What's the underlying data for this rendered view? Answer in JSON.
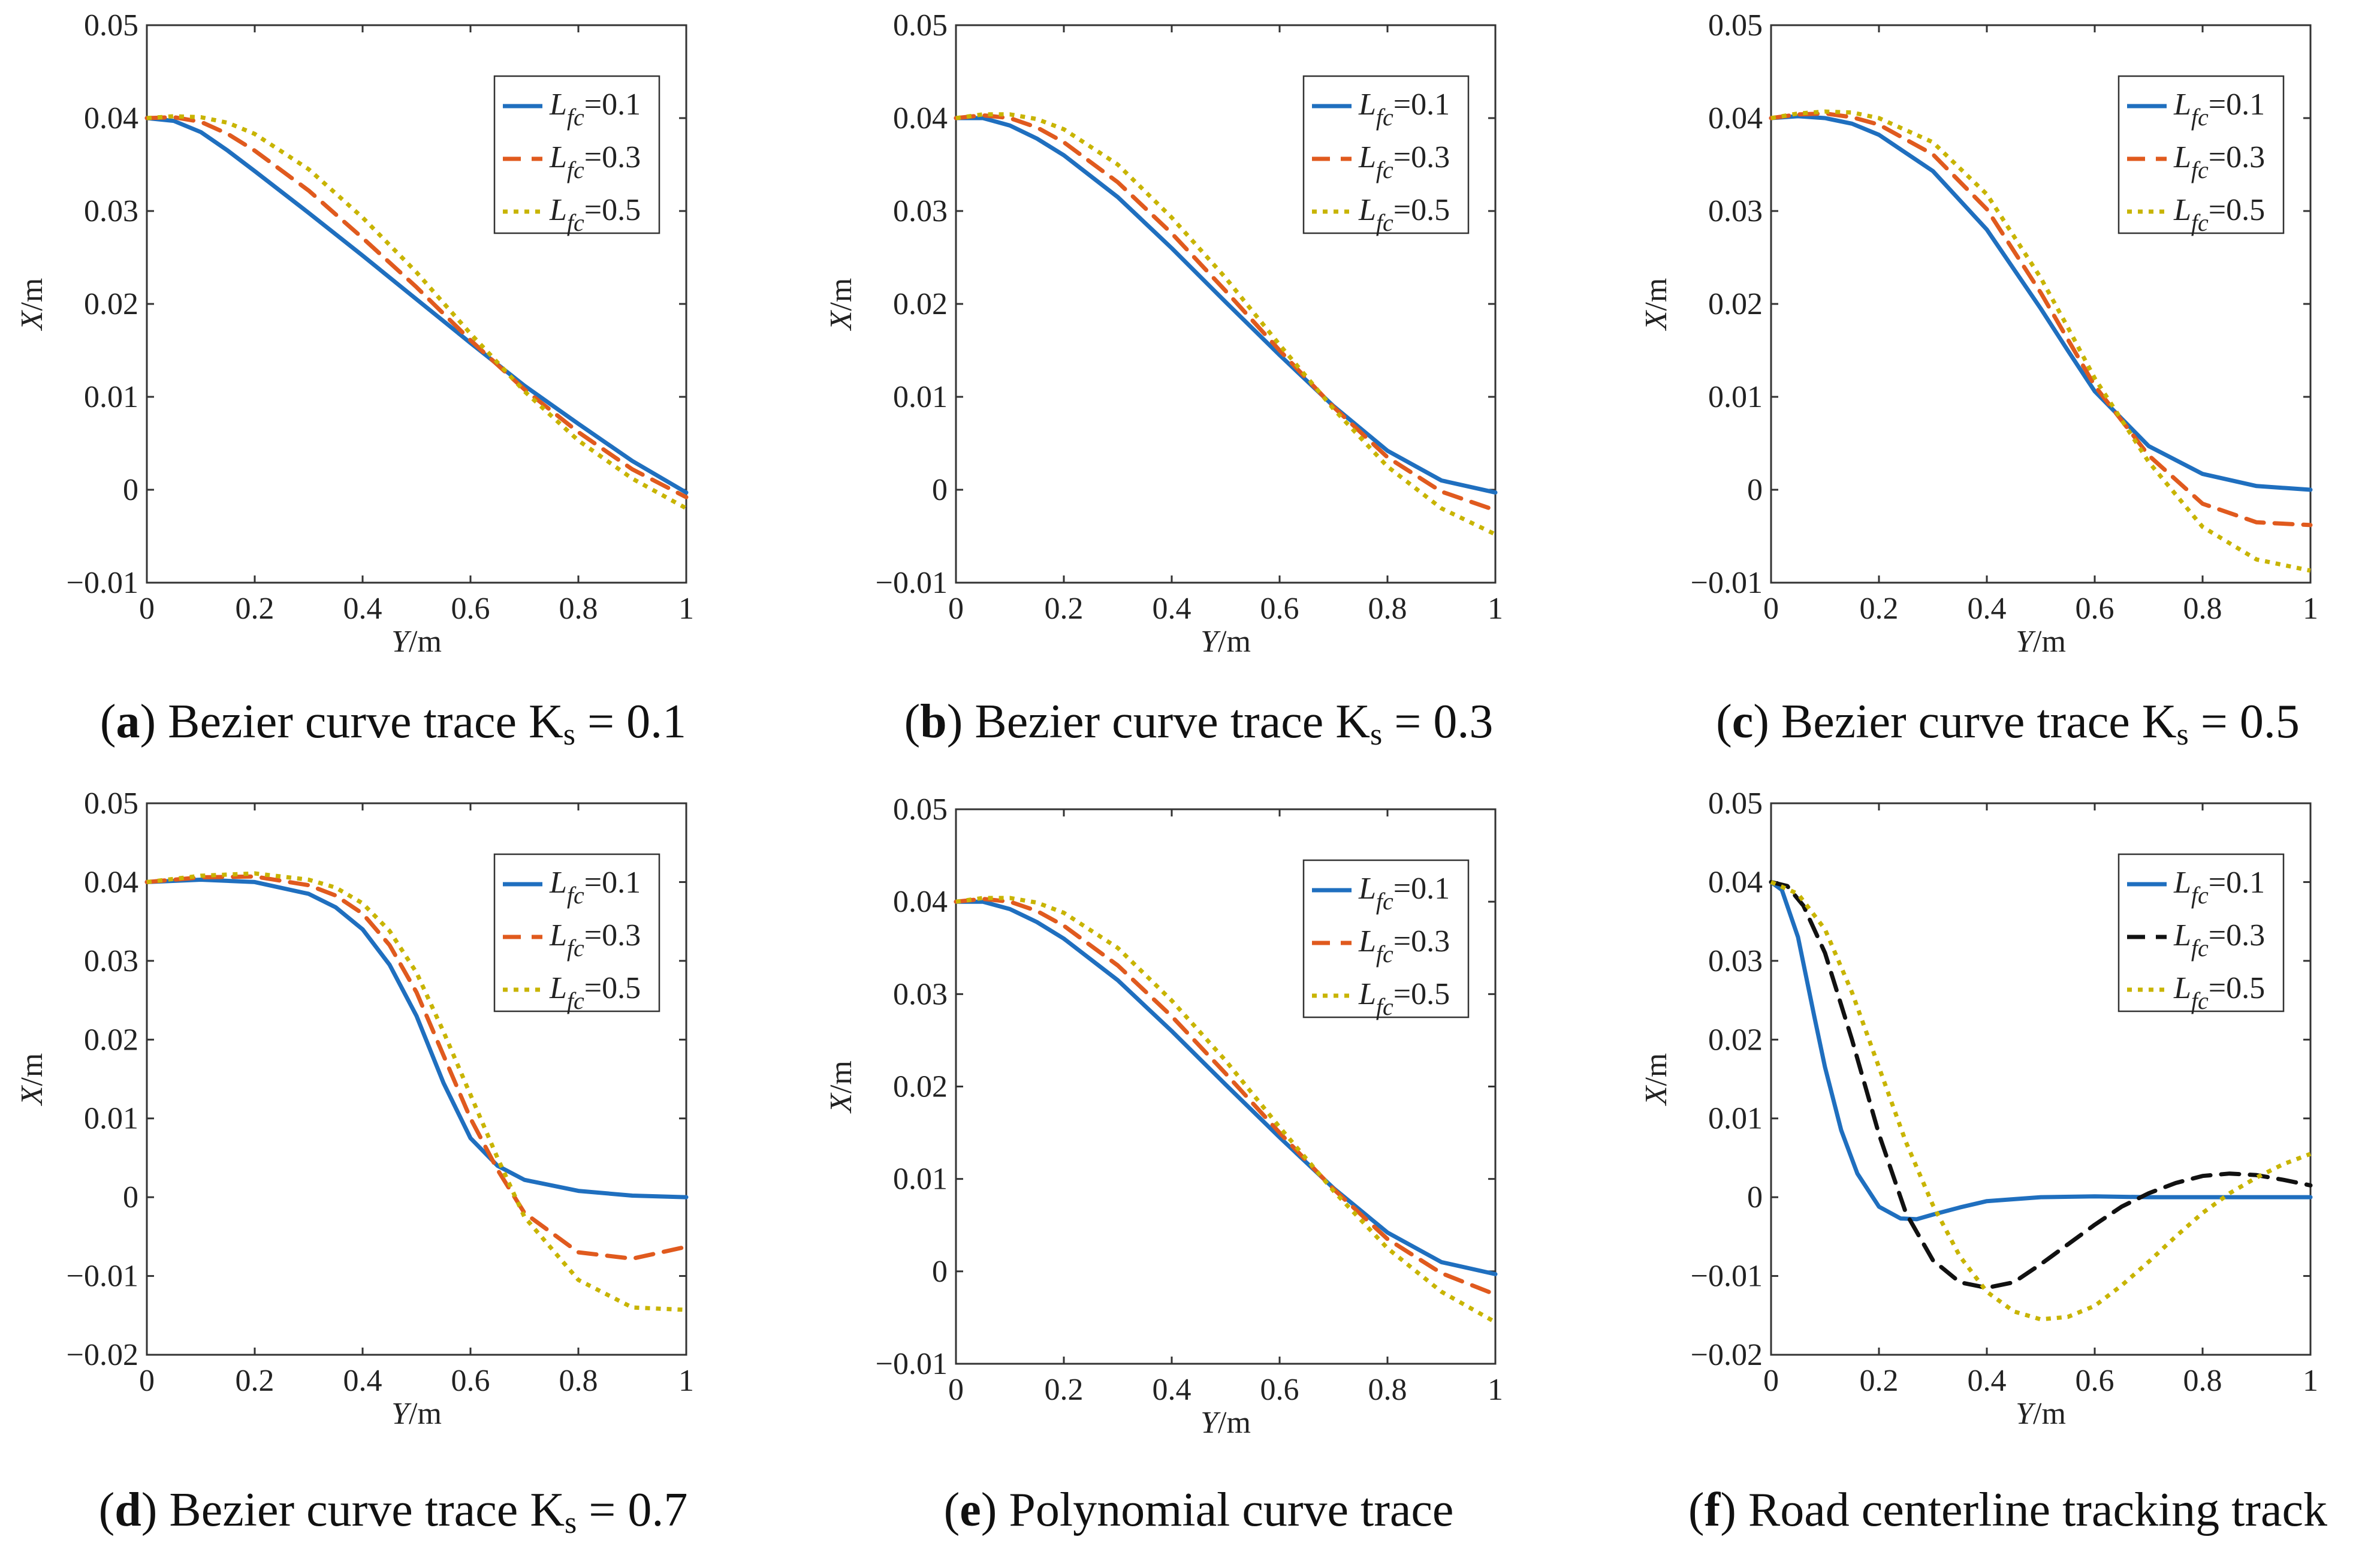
{
  "chart_data": [
    {
      "type": "line",
      "panel_letter": "a",
      "caption_text": " Bezier curve trace K",
      "caption_sub": "s",
      "caption_tail": " = 0.1",
      "xlabel_var": "Y",
      "xlabel_unit": "/m",
      "ylabel_var": "X",
      "ylabel_unit": "/m",
      "xlim": [
        0,
        1
      ],
      "ylim": [
        -0.01,
        0.05
      ],
      "xticks": [
        0,
        0.2,
        0.4,
        0.6,
        0.8,
        1
      ],
      "xtick_labels": [
        "0",
        "0.2",
        "0.4",
        "0.6",
        "0.8",
        "1"
      ],
      "yticks": [
        -0.01,
        0,
        0.01,
        0.02,
        0.03,
        0.04,
        0.05
      ],
      "ytick_labels": [
        "−0.01",
        "0",
        "0.01",
        "0.02",
        "0.03",
        "0.04",
        "0.05"
      ],
      "legend_position": "top-right",
      "series": [
        {
          "name": "L_fc=0.1",
          "label_var": "L",
          "label_sub": "fc",
          "label_val": "=0.1",
          "color": "#1f6fbf",
          "dash": "solid",
          "x": [
            0,
            0.05,
            0.1,
            0.15,
            0.2,
            0.3,
            0.4,
            0.5,
            0.6,
            0.7,
            0.8,
            0.9,
            1.0
          ],
          "y": [
            0.04,
            0.0397,
            0.0385,
            0.0365,
            0.0343,
            0.0298,
            0.0252,
            0.0205,
            0.0158,
            0.0112,
            0.0071,
            0.0031,
            -0.0003
          ]
        },
        {
          "name": "L_fc=0.3",
          "label_var": "L",
          "label_sub": "fc",
          "label_val": "=0.3",
          "color": "#e05a1e",
          "dash": "dashed",
          "x": [
            0,
            0.05,
            0.1,
            0.15,
            0.2,
            0.3,
            0.4,
            0.5,
            0.6,
            0.7,
            0.8,
            0.9,
            1.0
          ],
          "y": [
            0.04,
            0.0401,
            0.0396,
            0.0383,
            0.0365,
            0.0322,
            0.0271,
            0.0218,
            0.0161,
            0.0108,
            0.0062,
            0.0022,
            -0.0008
          ]
        },
        {
          "name": "L_fc=0.5",
          "label_var": "L",
          "label_sub": "fc",
          "label_val": "=0.5",
          "color": "#c8b400",
          "dash": "dotted",
          "x": [
            0,
            0.05,
            0.1,
            0.15,
            0.2,
            0.3,
            0.4,
            0.5,
            0.6,
            0.7,
            0.8,
            0.9,
            1.0
          ],
          "y": [
            0.04,
            0.0402,
            0.0401,
            0.0395,
            0.0383,
            0.0345,
            0.0293,
            0.0234,
            0.0168,
            0.0106,
            0.0053,
            0.0012,
            -0.002
          ]
        }
      ]
    },
    {
      "type": "line",
      "panel_letter": "b",
      "caption_text": " Bezier curve trace K",
      "caption_sub": "s",
      "caption_tail": " = 0.3",
      "xlabel_var": "Y",
      "xlabel_unit": "/m",
      "ylabel_var": "X",
      "ylabel_unit": "/m",
      "xlim": [
        0,
        1
      ],
      "ylim": [
        -0.01,
        0.05
      ],
      "xticks": [
        0,
        0.2,
        0.4,
        0.6,
        0.8,
        1
      ],
      "xtick_labels": [
        "0",
        "0.2",
        "0.4",
        "0.6",
        "0.8",
        "1"
      ],
      "yticks": [
        -0.01,
        0,
        0.01,
        0.02,
        0.03,
        0.04,
        0.05
      ],
      "ytick_labels": [
        "−0.01",
        "0",
        "0.01",
        "0.02",
        "0.03",
        "0.04",
        "0.05"
      ],
      "legend_position": "top-right",
      "series": [
        {
          "name": "L_fc=0.1",
          "label_var": "L",
          "label_sub": "fc",
          "label_val": "=0.1",
          "color": "#1f6fbf",
          "dash": "solid",
          "x": [
            0,
            0.05,
            0.1,
            0.15,
            0.2,
            0.3,
            0.4,
            0.5,
            0.6,
            0.7,
            0.8,
            0.9,
            1.0
          ],
          "y": [
            0.04,
            0.04,
            0.0392,
            0.0378,
            0.036,
            0.0315,
            0.026,
            0.0202,
            0.0145,
            0.009,
            0.0042,
            0.001,
            -0.0003
          ]
        },
        {
          "name": "L_fc=0.3",
          "label_var": "L",
          "label_sub": "fc",
          "label_val": "=0.3",
          "color": "#e05a1e",
          "dash": "dashed",
          "x": [
            0,
            0.05,
            0.1,
            0.15,
            0.2,
            0.3,
            0.4,
            0.5,
            0.6,
            0.7,
            0.8,
            0.9,
            1.0
          ],
          "y": [
            0.04,
            0.0403,
            0.04,
            0.039,
            0.0374,
            0.0331,
            0.0276,
            0.0214,
            0.015,
            0.0089,
            0.0035,
            -0.0002,
            -0.0022
          ]
        },
        {
          "name": "L_fc=0.5",
          "label_var": "L",
          "label_sub": "fc",
          "label_val": "=0.5",
          "color": "#c8b400",
          "dash": "dotted",
          "x": [
            0,
            0.05,
            0.1,
            0.15,
            0.2,
            0.3,
            0.4,
            0.5,
            0.6,
            0.7,
            0.8,
            0.9,
            1.0
          ],
          "y": [
            0.04,
            0.0404,
            0.0404,
            0.0399,
            0.0388,
            0.035,
            0.0293,
            0.0228,
            0.0156,
            0.0087,
            0.0025,
            -0.002,
            -0.0048
          ]
        }
      ]
    },
    {
      "type": "line",
      "panel_letter": "c",
      "caption_text": " Bezier curve trace K",
      "caption_sub": "s",
      "caption_tail": " = 0.5",
      "xlabel_var": "Y",
      "xlabel_unit": "/m",
      "ylabel_var": "X",
      "ylabel_unit": "/m",
      "xlim": [
        0,
        1
      ],
      "ylim": [
        -0.01,
        0.05
      ],
      "xticks": [
        0,
        0.2,
        0.4,
        0.6,
        0.8,
        1
      ],
      "xtick_labels": [
        "0",
        "0.2",
        "0.4",
        "0.6",
        "0.8",
        "1"
      ],
      "yticks": [
        -0.01,
        0,
        0.01,
        0.02,
        0.03,
        0.04,
        0.05
      ],
      "ytick_labels": [
        "−0.01",
        "0",
        "0.01",
        "0.02",
        "0.03",
        "0.04",
        "0.05"
      ],
      "legend_position": "top-right",
      "series": [
        {
          "name": "L_fc=0.1",
          "label_var": "L",
          "label_sub": "fc",
          "label_val": "=0.1",
          "color": "#1f6fbf",
          "dash": "solid",
          "x": [
            0,
            0.05,
            0.1,
            0.15,
            0.2,
            0.3,
            0.4,
            0.5,
            0.55,
            0.6,
            0.7,
            0.8,
            0.9,
            1.0
          ],
          "y": [
            0.04,
            0.0402,
            0.04,
            0.0394,
            0.0382,
            0.0343,
            0.028,
            0.0195,
            0.015,
            0.0106,
            0.0047,
            0.0017,
            0.0004,
            0.0
          ]
        },
        {
          "name": "L_fc=0.3",
          "label_var": "L",
          "label_sub": "fc",
          "label_val": "=0.3",
          "color": "#e05a1e",
          "dash": "dashed",
          "x": [
            0,
            0.05,
            0.1,
            0.15,
            0.2,
            0.3,
            0.4,
            0.5,
            0.55,
            0.6,
            0.7,
            0.8,
            0.9,
            1.0
          ],
          "y": [
            0.04,
            0.0404,
            0.0405,
            0.0401,
            0.0393,
            0.0361,
            0.0302,
            0.0212,
            0.0162,
            0.0112,
            0.0037,
            -0.0015,
            -0.0035,
            -0.0038
          ]
        },
        {
          "name": "L_fc=0.5",
          "label_var": "L",
          "label_sub": "fc",
          "label_val": "=0.5",
          "color": "#c8b400",
          "dash": "dotted",
          "x": [
            0,
            0.05,
            0.1,
            0.15,
            0.2,
            0.3,
            0.4,
            0.5,
            0.55,
            0.6,
            0.7,
            0.8,
            0.9,
            1.0
          ],
          "y": [
            0.04,
            0.0405,
            0.0407,
            0.0406,
            0.04,
            0.0374,
            0.0318,
            0.0228,
            0.0175,
            0.012,
            0.003,
            -0.004,
            -0.0075,
            -0.0087
          ]
        }
      ]
    },
    {
      "type": "line",
      "panel_letter": "d",
      "caption_text": " Bezier curve trace K",
      "caption_sub": "s",
      "caption_tail": " = 0.7",
      "xlabel_var": "Y",
      "xlabel_unit": "/m",
      "ylabel_var": "X",
      "ylabel_unit": "/m",
      "xlim": [
        0,
        1
      ],
      "ylim": [
        -0.02,
        0.05
      ],
      "xticks": [
        0,
        0.2,
        0.4,
        0.6,
        0.8,
        1
      ],
      "xtick_labels": [
        "0",
        "0.2",
        "0.4",
        "0.6",
        "0.8",
        "1"
      ],
      "yticks": [
        -0.02,
        -0.01,
        0,
        0.01,
        0.02,
        0.03,
        0.04,
        0.05
      ],
      "ytick_labels": [
        "−0.02",
        "−0.01",
        "0",
        "0.01",
        "0.02",
        "0.03",
        "0.04",
        "0.05"
      ],
      "legend_position": "top-right",
      "series": [
        {
          "name": "L_fc=0.1",
          "label_var": "L",
          "label_sub": "fc",
          "label_val": "=0.1",
          "color": "#1f6fbf",
          "dash": "solid",
          "x": [
            0,
            0.1,
            0.2,
            0.3,
            0.35,
            0.4,
            0.45,
            0.5,
            0.55,
            0.6,
            0.65,
            0.7,
            0.8,
            0.9,
            1.0
          ],
          "y": [
            0.04,
            0.0403,
            0.04,
            0.0385,
            0.0368,
            0.034,
            0.0295,
            0.023,
            0.0145,
            0.0075,
            0.004,
            0.0022,
            0.0008,
            0.0002,
            0.0
          ]
        },
        {
          "name": "L_fc=0.3",
          "label_var": "L",
          "label_sub": "fc",
          "label_val": "=0.3",
          "color": "#e05a1e",
          "dash": "dashed",
          "x": [
            0,
            0.1,
            0.2,
            0.3,
            0.35,
            0.4,
            0.45,
            0.5,
            0.55,
            0.6,
            0.65,
            0.7,
            0.8,
            0.9,
            1.0
          ],
          "y": [
            0.04,
            0.0406,
            0.0407,
            0.0396,
            0.0383,
            0.036,
            0.032,
            0.026,
            0.018,
            0.01,
            0.0035,
            -0.002,
            -0.007,
            -0.0078,
            -0.0063
          ]
        },
        {
          "name": "L_fc=0.5",
          "label_var": "L",
          "label_sub": "fc",
          "label_val": "=0.5",
          "color": "#c8b400",
          "dash": "dotted",
          "x": [
            0,
            0.1,
            0.2,
            0.3,
            0.35,
            0.4,
            0.45,
            0.5,
            0.55,
            0.6,
            0.65,
            0.7,
            0.8,
            0.9,
            1.0
          ],
          "y": [
            0.04,
            0.0408,
            0.0411,
            0.0403,
            0.0393,
            0.0373,
            0.0338,
            0.0285,
            0.021,
            0.013,
            0.005,
            -0.0025,
            -0.0105,
            -0.014,
            -0.0143
          ]
        }
      ]
    },
    {
      "type": "line",
      "panel_letter": "e",
      "caption_text": " Polynomial curve trace",
      "caption_sub": "",
      "caption_tail": "",
      "xlabel_var": "Y",
      "xlabel_unit": "/m",
      "ylabel_var": "X",
      "ylabel_unit": "/m",
      "xlim": [
        0,
        1
      ],
      "ylim": [
        -0.01,
        0.05
      ],
      "xticks": [
        0,
        0.2,
        0.4,
        0.6,
        0.8,
        1
      ],
      "xtick_labels": [
        "0",
        "0.2",
        "0.4",
        "0.6",
        "0.8",
        "1"
      ],
      "yticks": [
        -0.01,
        0,
        0.01,
        0.02,
        0.03,
        0.04,
        0.05
      ],
      "ytick_labels": [
        "−0.01",
        "0",
        "0.01",
        "0.02",
        "0.03",
        "0.04",
        "0.05"
      ],
      "legend_position": "top-right",
      "series": [
        {
          "name": "L_fc=0.1",
          "label_var": "L",
          "label_sub": "fc",
          "label_val": "=0.1",
          "color": "#1f6fbf",
          "dash": "solid",
          "x": [
            0,
            0.05,
            0.1,
            0.15,
            0.2,
            0.3,
            0.4,
            0.5,
            0.6,
            0.7,
            0.8,
            0.9,
            1.0
          ],
          "y": [
            0.04,
            0.04,
            0.0392,
            0.0378,
            0.036,
            0.0315,
            0.026,
            0.0202,
            0.0145,
            0.009,
            0.0042,
            0.001,
            -0.0003
          ]
        },
        {
          "name": "L_fc=0.3",
          "label_var": "L",
          "label_sub": "fc",
          "label_val": "=0.3",
          "color": "#e05a1e",
          "dash": "dashed",
          "x": [
            0,
            0.05,
            0.1,
            0.15,
            0.2,
            0.3,
            0.4,
            0.5,
            0.6,
            0.7,
            0.8,
            0.9,
            1.0
          ],
          "y": [
            0.04,
            0.0403,
            0.04,
            0.039,
            0.0374,
            0.0331,
            0.0276,
            0.0214,
            0.015,
            0.0089,
            0.0035,
            -0.0002,
            -0.0025
          ]
        },
        {
          "name": "L_fc=0.5",
          "label_var": "L",
          "label_sub": "fc",
          "label_val": "=0.5",
          "color": "#c8b400",
          "dash": "dotted",
          "x": [
            0,
            0.05,
            0.1,
            0.15,
            0.2,
            0.3,
            0.4,
            0.5,
            0.6,
            0.7,
            0.8,
            0.9,
            1.0
          ],
          "y": [
            0.04,
            0.0404,
            0.0404,
            0.0399,
            0.0388,
            0.035,
            0.0293,
            0.0228,
            0.0156,
            0.0087,
            0.0025,
            -0.0022,
            -0.0055
          ]
        }
      ]
    },
    {
      "type": "line",
      "panel_letter": "f",
      "caption_text": " Road centerline tracking track",
      "caption_sub": "",
      "caption_tail": "",
      "xlabel_var": "Y",
      "xlabel_unit": "/m",
      "ylabel_var": "X",
      "ylabel_unit": "/m",
      "xlim": [
        0,
        1
      ],
      "ylim": [
        -0.02,
        0.05
      ],
      "xticks": [
        0,
        0.2,
        0.4,
        0.6,
        0.8,
        1
      ],
      "xtick_labels": [
        "0",
        "0.2",
        "0.4",
        "0.6",
        "0.8",
        "1"
      ],
      "yticks": [
        -0.02,
        -0.01,
        0,
        0.01,
        0.02,
        0.03,
        0.04,
        0.05
      ],
      "ytick_labels": [
        "−0.02",
        "−0.01",
        "0",
        "0.01",
        "0.02",
        "0.03",
        "0.04",
        "0.05"
      ],
      "legend_position": "top-right",
      "series": [
        {
          "name": "L_fc=0.1",
          "label_var": "L",
          "label_sub": "fc",
          "label_val": "=0.1",
          "color": "#1f6fbf",
          "dash": "solid",
          "x": [
            0,
            0.02,
            0.05,
            0.08,
            0.1,
            0.13,
            0.16,
            0.2,
            0.24,
            0.27,
            0.3,
            0.35,
            0.4,
            0.5,
            0.6,
            0.7,
            0.8,
            0.9,
            1.0
          ],
          "y": [
            0.04,
            0.039,
            0.033,
            0.023,
            0.0165,
            0.0085,
            0.003,
            -0.0012,
            -0.0027,
            -0.0028,
            -0.0022,
            -0.0013,
            -0.0005,
            0.0,
            0.0001,
            0.0,
            0.0,
            0.0,
            0.0
          ]
        },
        {
          "name": "L_fc=0.3",
          "label_var": "L",
          "label_sub": "fc",
          "label_val": "=0.3",
          "color": "#111111",
          "dash": "dashed",
          "x": [
            0,
            0.03,
            0.06,
            0.1,
            0.15,
            0.2,
            0.25,
            0.3,
            0.35,
            0.4,
            0.45,
            0.5,
            0.55,
            0.6,
            0.65,
            0.7,
            0.75,
            0.8,
            0.85,
            0.9,
            0.95,
            1.0
          ],
          "y": [
            0.04,
            0.0395,
            0.037,
            0.031,
            0.02,
            0.008,
            -0.002,
            -0.008,
            -0.0108,
            -0.0115,
            -0.0108,
            -0.0085,
            -0.006,
            -0.0035,
            -0.0012,
            0.0005,
            0.0018,
            0.0027,
            0.003,
            0.0028,
            0.0022,
            0.0015
          ]
        },
        {
          "name": "L_fc=0.5",
          "label_var": "L",
          "label_sub": "fc",
          "label_val": "=0.5",
          "color": "#c8b400",
          "dash": "dotted",
          "x": [
            0,
            0.05,
            0.1,
            0.15,
            0.2,
            0.25,
            0.3,
            0.35,
            0.4,
            0.45,
            0.5,
            0.55,
            0.6,
            0.65,
            0.7,
            0.75,
            0.8,
            0.85,
            0.9,
            0.95,
            1.0
          ],
          "y": [
            0.04,
            0.0385,
            0.034,
            0.026,
            0.0165,
            0.007,
            -0.001,
            -0.0075,
            -0.012,
            -0.0145,
            -0.0155,
            -0.0152,
            -0.0138,
            -0.0112,
            -0.0082,
            -0.005,
            -0.002,
            0.0005,
            0.0025,
            0.0042,
            0.0055
          ]
        }
      ]
    }
  ]
}
